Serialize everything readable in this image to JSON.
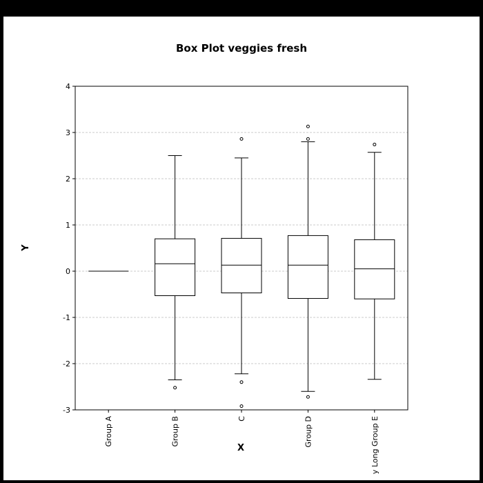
{
  "chart_data": {
    "type": "box",
    "title": "Box Plot veggies fresh",
    "xlabel": "X",
    "ylabel": "Y",
    "ylim": [
      -3,
      4
    ],
    "yticks": [
      "-3",
      "-2",
      "-1",
      "0",
      "1",
      "2",
      "3",
      "4"
    ],
    "grid": "horizontal dashed",
    "categories": [
      "Group A",
      "Group B",
      "C",
      "Group D",
      "y Long Group E"
    ],
    "boxes": [
      {
        "whisker_low": 0,
        "q1": 0,
        "median": 0,
        "q3": 0,
        "whisker_high": 0,
        "outliers": []
      },
      {
        "whisker_low": -2.35,
        "q1": -0.53,
        "median": 0.16,
        "q3": 0.7,
        "whisker_high": 2.5,
        "outliers": [
          -2.52
        ]
      },
      {
        "whisker_low": -2.22,
        "q1": -0.47,
        "median": 0.13,
        "q3": 0.71,
        "whisker_high": 2.45,
        "outliers": [
          -2.4,
          -2.92,
          2.86
        ]
      },
      {
        "whisker_low": -2.6,
        "q1": -0.59,
        "median": 0.13,
        "q3": 0.77,
        "whisker_high": 2.8,
        "outliers": [
          -2.72,
          2.86,
          3.13
        ]
      },
      {
        "whisker_low": -2.34,
        "q1": -0.6,
        "median": 0.05,
        "q3": 0.68,
        "whisker_high": 2.57,
        "outliers": [
          2.74
        ]
      }
    ]
  }
}
